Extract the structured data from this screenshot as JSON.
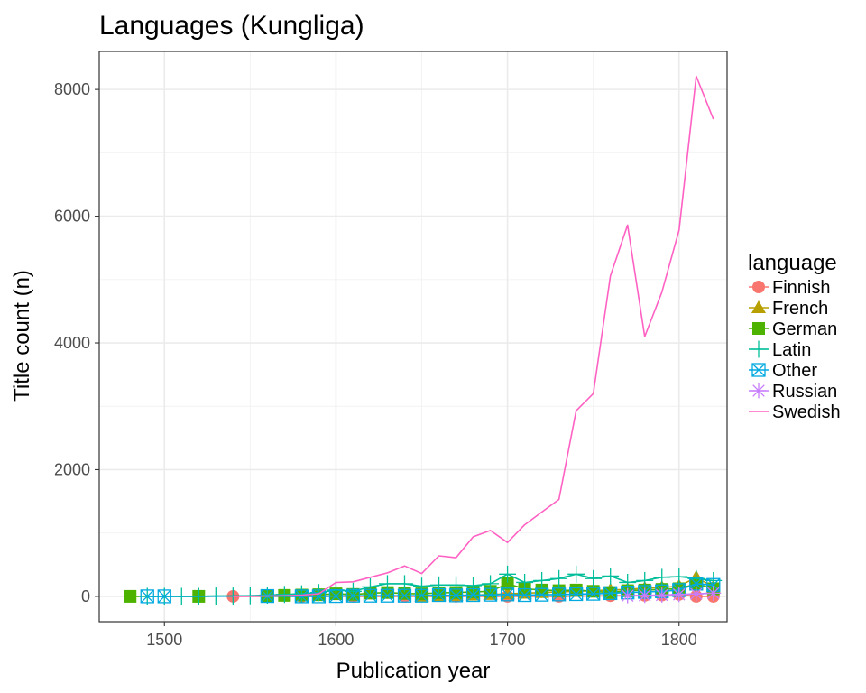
{
  "chart_data": {
    "type": "line",
    "title": "Languages (Kungliga)",
    "xlabel": "Publication year",
    "ylabel": "Title count (n)",
    "xlim": [
      1462,
      1828
    ],
    "ylim": [
      -400,
      8600
    ],
    "x_ticks": [
      1500,
      1600,
      1700,
      1800
    ],
    "y_ticks": [
      0,
      2000,
      4000,
      6000,
      8000
    ],
    "grid": true,
    "legend_title": "language",
    "legend_position": "right",
    "series": [
      {
        "name": "Finnish",
        "color": "#F8766D",
        "marker": "circle",
        "x": [
          1540,
          1580,
          1610,
          1640,
          1670,
          1700,
          1730,
          1760,
          1780,
          1790,
          1800,
          1810,
          1820
        ],
        "y": [
          0,
          0,
          0,
          0,
          0,
          0,
          0,
          10,
          15,
          20,
          30,
          0,
          0
        ]
      },
      {
        "name": "French",
        "color": "#B79F00",
        "marker": "triangle",
        "x": [
          1650,
          1660,
          1670,
          1680,
          1690,
          1700,
          1710,
          1720,
          1730,
          1740,
          1750,
          1760,
          1770,
          1780,
          1790,
          1800,
          1810,
          1820
        ],
        "y": [
          5,
          10,
          15,
          20,
          30,
          40,
          50,
          60,
          70,
          80,
          90,
          100,
          110,
          130,
          140,
          160,
          300,
          150
        ]
      },
      {
        "name": "German",
        "color": "#4DB300",
        "marker": "square",
        "x": [
          1480,
          1520,
          1560,
          1570,
          1580,
          1590,
          1600,
          1610,
          1620,
          1630,
          1640,
          1650,
          1660,
          1670,
          1680,
          1690,
          1700,
          1710,
          1720,
          1730,
          1740,
          1750,
          1760,
          1770,
          1780,
          1790,
          1800,
          1810,
          1820
        ],
        "y": [
          0,
          0,
          10,
          15,
          20,
          25,
          40,
          30,
          50,
          60,
          45,
          40,
          55,
          60,
          70,
          80,
          200,
          120,
          100,
          90,
          100,
          80,
          60,
          90,
          100,
          110,
          120,
          200,
          120
        ]
      },
      {
        "name": "Latin",
        "color": "#00BE9A",
        "marker": "plus",
        "x": [
          1490,
          1500,
          1510,
          1520,
          1530,
          1540,
          1550,
          1560,
          1570,
          1580,
          1590,
          1600,
          1610,
          1620,
          1630,
          1640,
          1650,
          1660,
          1670,
          1680,
          1690,
          1700,
          1710,
          1720,
          1730,
          1740,
          1750,
          1760,
          1770,
          1780,
          1790,
          1800,
          1810,
          1820
        ],
        "y": [
          0,
          0,
          0,
          0,
          5,
          5,
          10,
          20,
          30,
          40,
          60,
          100,
          80,
          150,
          200,
          200,
          160,
          180,
          180,
          170,
          200,
          350,
          220,
          250,
          280,
          350,
          280,
          320,
          220,
          250,
          300,
          310,
          280,
          250
        ]
      },
      {
        "name": "Other",
        "color": "#00A9E0",
        "marker": "boxx",
        "x": [
          1490,
          1500,
          1560,
          1580,
          1590,
          1600,
          1610,
          1620,
          1630,
          1640,
          1650,
          1660,
          1670,
          1680,
          1690,
          1700,
          1710,
          1720,
          1730,
          1740,
          1750,
          1760,
          1770,
          1780,
          1790,
          1800,
          1810,
          1820
        ],
        "y": [
          0,
          0,
          5,
          0,
          0,
          5,
          10,
          10,
          10,
          10,
          10,
          20,
          15,
          20,
          25,
          30,
          20,
          25,
          30,
          35,
          40,
          50,
          60,
          70,
          80,
          100,
          200,
          180
        ]
      },
      {
        "name": "Russian",
        "color": "#C77CFF",
        "marker": "asterisk",
        "x": [
          1770,
          1780,
          1790,
          1800,
          1810,
          1820
        ],
        "y": [
          10,
          15,
          20,
          30,
          40,
          50
        ]
      },
      {
        "name": "Swedish",
        "color": "#FF61C3",
        "marker": "none",
        "x": [
          1540,
          1560,
          1570,
          1580,
          1590,
          1600,
          1610,
          1620,
          1630,
          1640,
          1650,
          1660,
          1670,
          1680,
          1690,
          1700,
          1710,
          1720,
          1730,
          1740,
          1750,
          1760,
          1770,
          1780,
          1790,
          1800,
          1810,
          1820
        ],
        "y": [
          0,
          5,
          10,
          20,
          40,
          220,
          230,
          300,
          370,
          480,
          360,
          640,
          610,
          940,
          1040,
          850,
          1130,
          1330,
          1530,
          2930,
          3200,
          5060,
          5860,
          4100,
          4800,
          5780,
          8210,
          7530
        ]
      }
    ]
  }
}
